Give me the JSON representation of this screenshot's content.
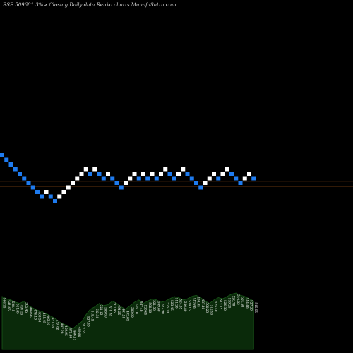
{
  "header": {
    "text": "BSE 509681 3%> Closing Daily data Renko charts MunafaSutra.com"
  },
  "colors": {
    "background": "#000000",
    "up_brick": "#ffffff",
    "down_brick": "#1e7bef",
    "reference_line": "#c8691c",
    "volume_fill": "#0a2a0a",
    "volume_edge": "#1a5a1a",
    "label_text": "#ffffff"
  },
  "chart_data": {
    "type": "renko",
    "title": "BSE 509681 3%> Closing Daily data Renko charts MunafaSutra.com",
    "brick_size_pct": 3,
    "bricks": [
      {
        "level": 0,
        "dir": "down"
      },
      {
        "level": -1,
        "dir": "down"
      },
      {
        "level": -2,
        "dir": "down"
      },
      {
        "level": -3,
        "dir": "down"
      },
      {
        "level": -4,
        "dir": "down"
      },
      {
        "level": -5,
        "dir": "down"
      },
      {
        "level": -6,
        "dir": "down"
      },
      {
        "level": -7,
        "dir": "down"
      },
      {
        "level": -8,
        "dir": "down"
      },
      {
        "level": -9,
        "dir": "down"
      },
      {
        "level": -8,
        "dir": "up"
      },
      {
        "level": -9,
        "dir": "down"
      },
      {
        "level": -10,
        "dir": "down"
      },
      {
        "level": -9,
        "dir": "up"
      },
      {
        "level": -8,
        "dir": "up"
      },
      {
        "level": -7,
        "dir": "up"
      },
      {
        "level": -6,
        "dir": "up"
      },
      {
        "level": -5,
        "dir": "up"
      },
      {
        "level": -4,
        "dir": "up"
      },
      {
        "level": -3,
        "dir": "up"
      },
      {
        "level": -4,
        "dir": "down"
      },
      {
        "level": -3,
        "dir": "up"
      },
      {
        "level": -4,
        "dir": "down"
      },
      {
        "level": -5,
        "dir": "down"
      },
      {
        "level": -4,
        "dir": "up"
      },
      {
        "level": -5,
        "dir": "down"
      },
      {
        "level": -6,
        "dir": "down"
      },
      {
        "level": -7,
        "dir": "down"
      },
      {
        "level": -6,
        "dir": "up"
      },
      {
        "level": -5,
        "dir": "up"
      },
      {
        "level": -4,
        "dir": "up"
      },
      {
        "level": -5,
        "dir": "down"
      },
      {
        "level": -4,
        "dir": "up"
      },
      {
        "level": -5,
        "dir": "down"
      },
      {
        "level": -4,
        "dir": "up"
      },
      {
        "level": -5,
        "dir": "down"
      },
      {
        "level": -4,
        "dir": "up"
      },
      {
        "level": -3,
        "dir": "up"
      },
      {
        "level": -4,
        "dir": "down"
      },
      {
        "level": -5,
        "dir": "down"
      },
      {
        "level": -4,
        "dir": "up"
      },
      {
        "level": -3,
        "dir": "up"
      },
      {
        "level": -4,
        "dir": "down"
      },
      {
        "level": -5,
        "dir": "down"
      },
      {
        "level": -6,
        "dir": "down"
      },
      {
        "level": -7,
        "dir": "down"
      },
      {
        "level": -6,
        "dir": "up"
      },
      {
        "level": -5,
        "dir": "up"
      },
      {
        "level": -4,
        "dir": "up"
      },
      {
        "level": -5,
        "dir": "down"
      },
      {
        "level": -4,
        "dir": "up"
      },
      {
        "level": -3,
        "dir": "up"
      },
      {
        "level": -4,
        "dir": "down"
      },
      {
        "level": -5,
        "dir": "down"
      },
      {
        "level": -6,
        "dir": "down"
      },
      {
        "level": -5,
        "dir": "up"
      },
      {
        "level": -4,
        "dir": "up"
      },
      {
        "level": -5,
        "dir": "down"
      }
    ],
    "reference_lines": [
      -5.6,
      -6.7
    ],
    "volume": {
      "values": [
        46,
        44,
        43,
        41,
        40,
        42,
        38,
        36,
        34,
        33,
        31,
        29,
        27,
        24,
        22,
        20,
        18,
        21,
        24,
        30,
        35,
        37,
        40,
        38,
        39,
        42,
        40,
        37,
        35,
        38,
        41,
        43,
        40,
        42,
        44,
        43,
        41,
        42,
        44,
        46,
        45,
        43,
        44,
        46,
        47,
        45,
        42,
        40,
        43,
        45,
        44,
        46,
        48,
        49,
        47,
        46,
        44,
        42
      ],
      "labels": [
        "566.35",
        "541.65",
        "528.45",
        "511.85",
        "497.55",
        "505.45",
        "488.95",
        "476.10",
        "469.50",
        "455.45",
        "465.10",
        "451.55",
        "438.90",
        "447.20",
        "459.95",
        "472.40",
        "486.15",
        "499.80",
        "513.65",
        "527.50",
        "518.45",
        "532.30",
        "521.15",
        "508.60",
        "519.70",
        "507.95",
        "494.25",
        "481.20",
        "493.85",
        "506.60",
        "519.10",
        "507.40",
        "520.65",
        "508.30",
        "521.55",
        "509.80",
        "522.90",
        "535.70",
        "523.45",
        "511.20",
        "524.05",
        "536.80",
        "524.15",
        "512.60",
        "499.95",
        "487.40",
        "500.25",
        "512.95",
        "525.40",
        "513.15",
        "526.30",
        "539.25",
        "526.70",
        "514.05",
        "501.50",
        "514.40",
        "527.20",
        "515.55"
      ]
    }
  }
}
